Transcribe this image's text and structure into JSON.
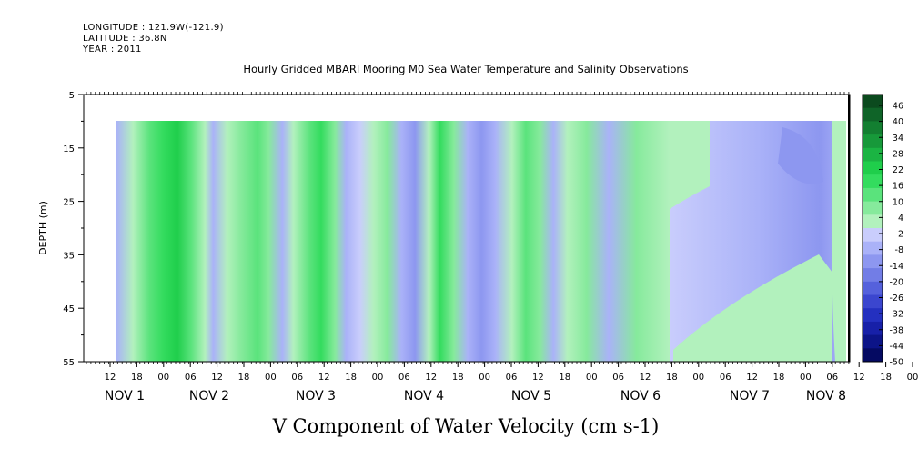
{
  "header": {
    "longitude": "LONGITUDE : 121.9W(-121.9)",
    "latitude": "LATITUDE : 36.8N",
    "year": "YEAR : 2011"
  },
  "chart_data": {
    "type": "heatmap",
    "title": "Hourly Gridded MBARI Mooring M0 Sea Water Temperature and Salinity Observations",
    "xlabel": "",
    "ylabel": "DEPTH (m)",
    "bottom_label": "V Component of Water Velocity (cm s-1)",
    "y_ticks": [
      "5",
      "15",
      "25",
      "35",
      "45",
      "55"
    ],
    "y_range": [
      5,
      55
    ],
    "y_inverted": true,
    "data_top_depth": 10,
    "x_hour_ticks": [
      "12",
      "18",
      "00",
      "06",
      "12",
      "18",
      "00",
      "06",
      "12",
      "18",
      "00",
      "06",
      "12",
      "18",
      "00",
      "06",
      "12",
      "18",
      "00",
      "06",
      "12",
      "18",
      "00",
      "06",
      "12",
      "18",
      "00",
      "06",
      "12",
      "18",
      "00",
      "06"
    ],
    "x_day_labels": [
      "NOV  1",
      "NOV  2",
      "NOV  3",
      "NOV  4",
      "NOV  5",
      "NOV  6",
      "NOV  7",
      "NOV  8"
    ],
    "colorbar_labels": [
      "46",
      "40",
      "34",
      "28",
      "22",
      "16",
      "10",
      "4",
      "-2",
      "-8",
      "-14",
      "-20",
      "-26",
      "-32",
      "-38",
      "-44",
      "-50"
    ],
    "colorbar_colors": [
      "#0b4a1e",
      "#0f6428",
      "#137f31",
      "#17993a",
      "#1bb443",
      "#1fce4b",
      "#33dc5e",
      "#5ae37c",
      "#86ea9c",
      "#b2f1bd",
      "#c9cdfc",
      "#aab2f8",
      "#8d97f0",
      "#727de6",
      "#5561dc",
      "#3b46cf",
      "#2430c0",
      "#1720a8",
      "#0c1488",
      "#050a62"
    ],
    "palette_note_colors": {
      "green": "#33dc5e",
      "light_green": "#b2f1bd",
      "light_blue": "#aab2f8",
      "blue": "#8d97f0"
    }
  }
}
